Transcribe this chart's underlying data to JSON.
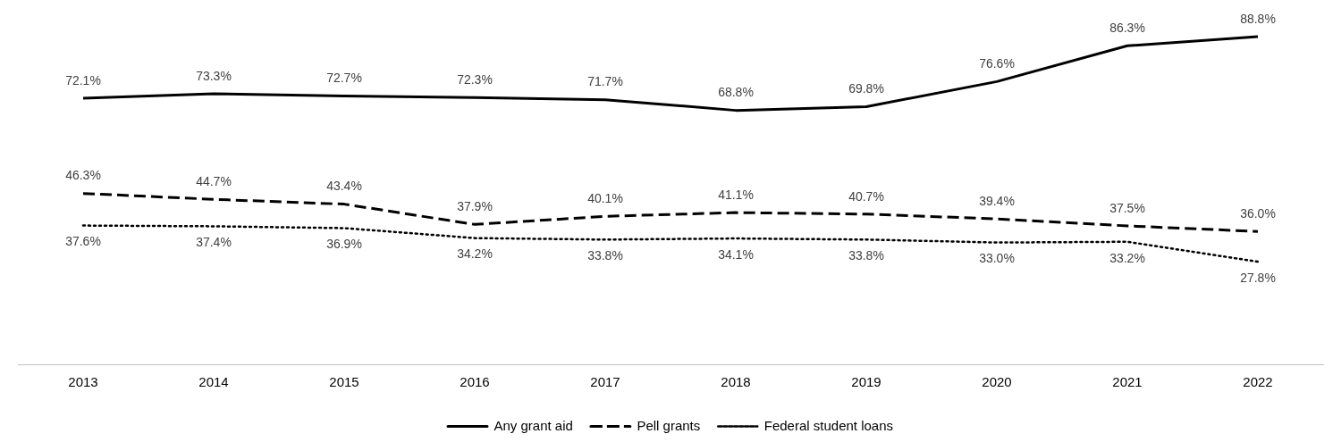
{
  "chart_data": {
    "type": "line",
    "categories": [
      "2013",
      "2014",
      "2015",
      "2016",
      "2017",
      "2018",
      "2019",
      "2020",
      "2021",
      "2022"
    ],
    "series": [
      {
        "name": "Any grant aid",
        "color": "#000000",
        "line_style": "solid",
        "values": [
          72.1,
          73.3,
          72.7,
          72.3,
          71.7,
          68.8,
          69.8,
          76.6,
          86.3,
          88.8
        ],
        "value_labels": [
          "72.1%",
          "73.3%",
          "72.7%",
          "72.3%",
          "71.7%",
          "68.8%",
          "69.8%",
          "76.6%",
          "86.3%",
          "88.8%"
        ]
      },
      {
        "name": "Pell grants",
        "color": "#000000",
        "line_style": "dashed",
        "values": [
          46.3,
          44.7,
          43.4,
          37.9,
          40.1,
          41.1,
          40.7,
          39.4,
          37.5,
          36.0
        ],
        "value_labels": [
          "46.3%",
          "44.7%",
          "43.4%",
          "37.9%",
          "40.1%",
          "41.1%",
          "40.7%",
          "39.4%",
          "37.5%",
          "36.0%"
        ]
      },
      {
        "name": "Federal student loans",
        "color": "#000000",
        "line_style": "dotted",
        "values": [
          37.6,
          37.4,
          36.9,
          34.2,
          33.8,
          34.1,
          33.8,
          33.0,
          33.2,
          27.8
        ],
        "value_labels": [
          "37.6%",
          "37.4%",
          "36.9%",
          "34.2%",
          "33.8%",
          "34.1%",
          "33.8%",
          "33.0%",
          "33.2%",
          "27.8%"
        ]
      }
    ],
    "legend": "bottom",
    "grid": false,
    "marker": "none",
    "tick_labels": "x"
  }
}
